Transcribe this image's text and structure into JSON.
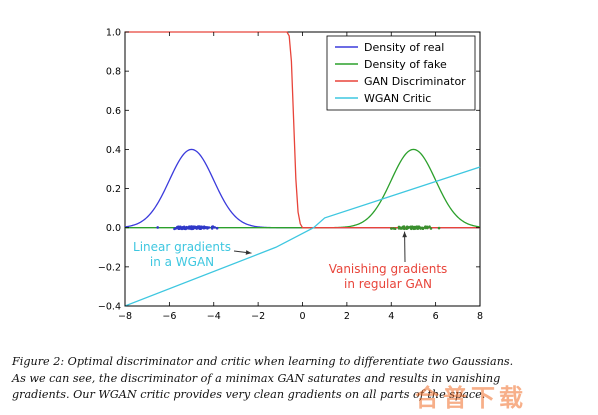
{
  "chart_data": {
    "type": "line",
    "title": "",
    "xlabel": "",
    "ylabel": "",
    "xlim": [
      -8,
      8
    ],
    "ylim": [
      -0.4,
      1.0
    ],
    "grid": false,
    "legend_position": "top-right",
    "x_ticks": [
      "−8",
      "−6",
      "−4",
      "−2",
      "0",
      "2",
      "4",
      "6",
      "8"
    ],
    "y_ticks": [
      "−0.4",
      "−0.2",
      "0.0",
      "0.2",
      "0.4",
      "0.6",
      "0.8",
      "1.0"
    ],
    "series": [
      {
        "name": "Density of real",
        "color": "#3b3bdc",
        "kind": "gaussian",
        "mean": -5,
        "peak": 0.4,
        "sd": 1
      },
      {
        "name": "Density of fake",
        "color": "#2ca02c",
        "kind": "gaussian",
        "mean": 5,
        "peak": 0.4,
        "sd": 1
      },
      {
        "name": "GAN Discriminator",
        "color": "#e8443a",
        "kind": "sigmoid",
        "x": [
          -8,
          -0.7,
          -0.6,
          -0.5,
          -0.4,
          -0.3,
          -0.2,
          -0.1,
          0.0,
          0.2,
          8
        ],
        "y": [
          1.0,
          1.0,
          0.98,
          0.85,
          0.55,
          0.25,
          0.08,
          0.02,
          0.0,
          0.0,
          0.0
        ]
      },
      {
        "name": "WGAN Critic",
        "color": "#3ec7e0",
        "kind": "polyline",
        "x": [
          -8,
          -1.2,
          0.5,
          1.0,
          8
        ],
        "y": [
          -0.4,
          -0.1,
          0.0,
          0.05,
          0.31
        ]
      }
    ],
    "scatter": [
      {
        "name": "real samples",
        "color": "#2f38c8",
        "center": -5,
        "spread": 1,
        "count": 90
      },
      {
        "name": "fake samples",
        "color": "#3a8f2e",
        "center": 5,
        "spread": 1,
        "count": 60
      }
    ],
    "annotations": [
      {
        "lines": [
          "Linear gradients",
          "in a WGAN"
        ],
        "color": "#3ec7e0",
        "arrow_to": [
          -2.3,
          -0.13
        ]
      },
      {
        "lines": [
          "Vanishing gradients",
          "in regular GAN"
        ],
        "color": "#e8443a",
        "arrow_to": [
          4.6,
          -0.02
        ]
      }
    ]
  },
  "caption": {
    "lines": [
      "Figure 2: Optimal discriminator and critic when learning to differentiate two Gaussians.",
      "As we can see, the discriminator of a minimax GAN saturates and results in vanishing",
      "gradients. Our WGAN critic provides very clean gradients on all parts of the space."
    ]
  },
  "watermark": "合普下载"
}
